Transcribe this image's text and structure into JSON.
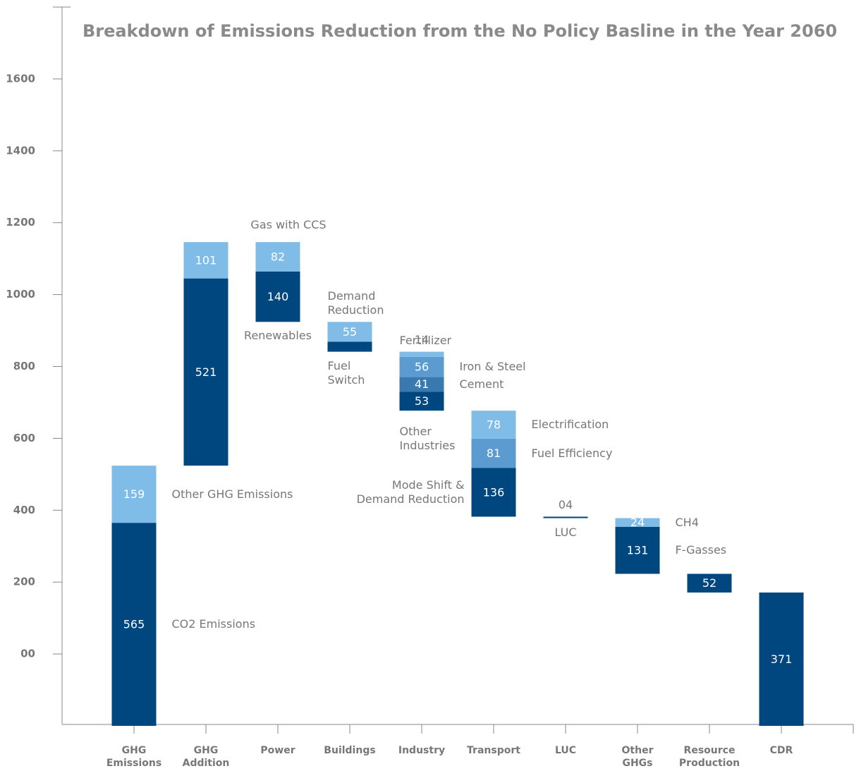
{
  "chart_data": {
    "type": "waterfall",
    "title": "Breakdown of Emissions Reduction from the No Policy Basline in the Year 2060",
    "ylim": [
      -200,
      1800
    ],
    "yticks": [
      {
        "value": 0,
        "label": "00"
      },
      200,
      400,
      600,
      800,
      1000,
      1200,
      1400,
      1600
    ],
    "bars": [
      {
        "category": "GHG Emissions",
        "direction": "up",
        "segments": [
          {
            "name": "CO2 Emissions",
            "value": 565,
            "color": "#00467f"
          },
          {
            "name": "Other GHG Emissions",
            "value": 159,
            "color": "#7fbde8"
          }
        ]
      },
      {
        "category": "GHG Addition",
        "direction": "up",
        "segments": [
          {
            "value": 521,
            "color": "#00467f"
          },
          {
            "value": 101,
            "color": "#7fbde8"
          }
        ]
      },
      {
        "category": "Power",
        "direction": "down",
        "segments": [
          {
            "name": "Renewables",
            "value": 140,
            "color": "#00467f"
          },
          {
            "name": "Gas with CCS",
            "value": 82,
            "color": "#7fbde8"
          }
        ]
      },
      {
        "category": "Buildings",
        "direction": "down",
        "segments": [
          {
            "name": "Fuel Switch",
            "value": 28,
            "value_label": null,
            "color": "#00467f"
          },
          {
            "name": "Demand Reduction",
            "value": 55,
            "color": "#7fbde8"
          }
        ]
      },
      {
        "category": "Industry",
        "direction": "down",
        "segments": [
          {
            "name": "Other Industries",
            "value": 53,
            "color": "#00467f"
          },
          {
            "name": "Cement",
            "value": 41,
            "color": "#3a78b0"
          },
          {
            "name": "Iron & Steel",
            "value": 56,
            "color": "#5b9bd0"
          },
          {
            "name": "Fertillizer",
            "value": 14,
            "color": "#7fbde8"
          }
        ]
      },
      {
        "category": "Transport",
        "direction": "down",
        "segments": [
          {
            "name": "Mode Shift & Demand Reduction",
            "value": 136,
            "color": "#00467f"
          },
          {
            "name": "Fuel Efficiency",
            "value": 81,
            "color": "#5b9bd0"
          },
          {
            "name": "Electrification",
            "value": 78,
            "color": "#7fbde8"
          }
        ]
      },
      {
        "category": "LUC",
        "direction": "down",
        "segments": [
          {
            "name": "LUC",
            "value": 4,
            "value_label": "04",
            "color": "#00467f"
          }
        ]
      },
      {
        "category": "Other GHGs",
        "direction": "down",
        "segments": [
          {
            "name": "F-Gasses",
            "value": 131,
            "color": "#00467f"
          },
          {
            "name": "CH4",
            "value": 24,
            "color": "#7fbde8"
          }
        ]
      },
      {
        "category": "Resource Production",
        "direction": "down",
        "segments": [
          {
            "value": 52,
            "color": "#00467f"
          }
        ]
      },
      {
        "category": "CDR",
        "direction": "total",
        "segments": [
          {
            "value": 371,
            "color": "#00467f"
          }
        ]
      }
    ]
  }
}
